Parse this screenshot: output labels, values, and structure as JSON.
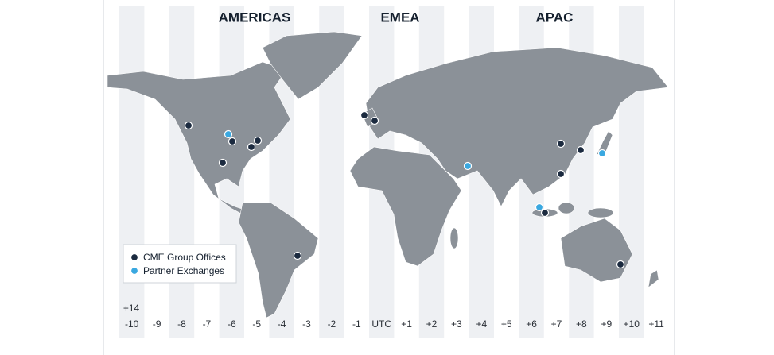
{
  "regions": [
    "AMERICAS",
    "EMEA",
    "APAC"
  ],
  "legend": [
    {
      "label": "CME Group Offices",
      "color": "#1b2a3f"
    },
    {
      "label": "Partner Exchanges",
      "color": "#3aa8e0"
    }
  ],
  "time_zones": [
    "-10",
    "-9",
    "-8",
    "-7",
    "-6",
    "-5",
    "-4",
    "-3",
    "-2",
    "-1",
    "UTC",
    "+1",
    "+2",
    "+3",
    "+4",
    "+5",
    "+6",
    "+7",
    "+8",
    "+9",
    "+10",
    "+11"
  ],
  "extra_zone": "+14"
}
